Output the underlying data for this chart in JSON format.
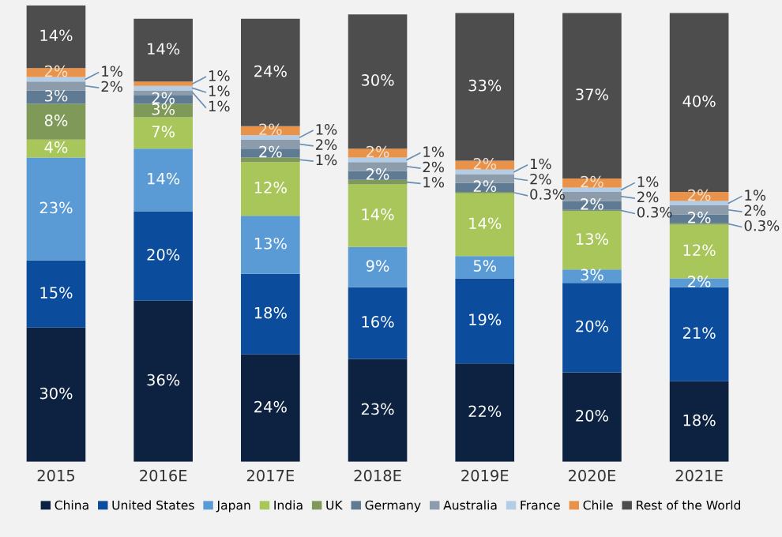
{
  "chart_data": {
    "type": "bar",
    "stacked": true,
    "legend": "bottom",
    "categories": [
      "2015",
      "2016E",
      "2017E",
      "2018E",
      "2019E",
      "2020E",
      "2021E"
    ],
    "series": [
      {
        "name": "China",
        "color": "#0d2240",
        "values": [
          30,
          36,
          24,
          23,
          22,
          20,
          18
        ],
        "value_labels": [
          "30%",
          "36%",
          "24%",
          "23%",
          "22%",
          "20%",
          "18%"
        ]
      },
      {
        "name": "United States",
        "color": "#0b4c9c",
        "values": [
          15,
          20,
          18,
          16,
          19,
          20,
          21
        ],
        "value_labels": [
          "15%",
          "20%",
          "18%",
          "16%",
          "19%",
          "20%",
          "21%"
        ]
      },
      {
        "name": "Japan",
        "color": "#5b9bd5",
        "values": [
          23,
          14,
          13,
          9,
          5,
          3,
          2
        ],
        "value_labels": [
          "23%",
          "14%",
          "13%",
          "9%",
          "5%",
          "3%",
          "2%"
        ]
      },
      {
        "name": "India",
        "color": "#a9c65a",
        "values": [
          4,
          7,
          12,
          14,
          14,
          13,
          12
        ],
        "value_labels": [
          "4%",
          "7%",
          "12%",
          "14%",
          "14%",
          "13%",
          "12%"
        ]
      },
      {
        "name": "UK",
        "color": "#7f9a58",
        "values": [
          8,
          3,
          1,
          1,
          0.3,
          0.3,
          0.3
        ],
        "value_labels": [
          "8%",
          "3%",
          "1%",
          "1%",
          "0.3%",
          "0.3%",
          "0.3%"
        ]
      },
      {
        "name": "Germany",
        "color": "#5f7a93",
        "values": [
          3,
          2,
          2,
          2,
          2,
          2,
          2
        ],
        "value_labels": [
          "3%",
          "2%",
          "2%",
          "2%",
          "2%",
          "2%",
          "2%"
        ]
      },
      {
        "name": "Australia",
        "color": "#8d9cab",
        "values": [
          2,
          1,
          2,
          2,
          2,
          2,
          2
        ],
        "value_labels": [
          "2%",
          "1%",
          "2%",
          "2%",
          "2%",
          "2%",
          "2%"
        ]
      },
      {
        "name": "France",
        "color": "#b4cde6",
        "values": [
          1,
          1,
          1,
          1,
          1,
          1,
          1
        ],
        "value_labels": [
          "1%",
          "1%",
          "1%",
          "1%",
          "1%",
          "1%",
          "1%"
        ]
      },
      {
        "name": "Chile",
        "color": "#e8924a",
        "values": [
          2,
          1,
          2,
          2,
          2,
          2,
          2
        ],
        "value_labels": [
          "2%",
          "1%",
          "2%",
          "2%",
          "2%",
          "2%",
          "2%"
        ]
      },
      {
        "name": "Rest of the World",
        "color": "#4d4d4d",
        "values": [
          14,
          14,
          24,
          30,
          33,
          37,
          40
        ],
        "value_labels": [
          "14%",
          "14%",
          "24%",
          "30%",
          "33%",
          "37%",
          "40%"
        ]
      }
    ]
  }
}
